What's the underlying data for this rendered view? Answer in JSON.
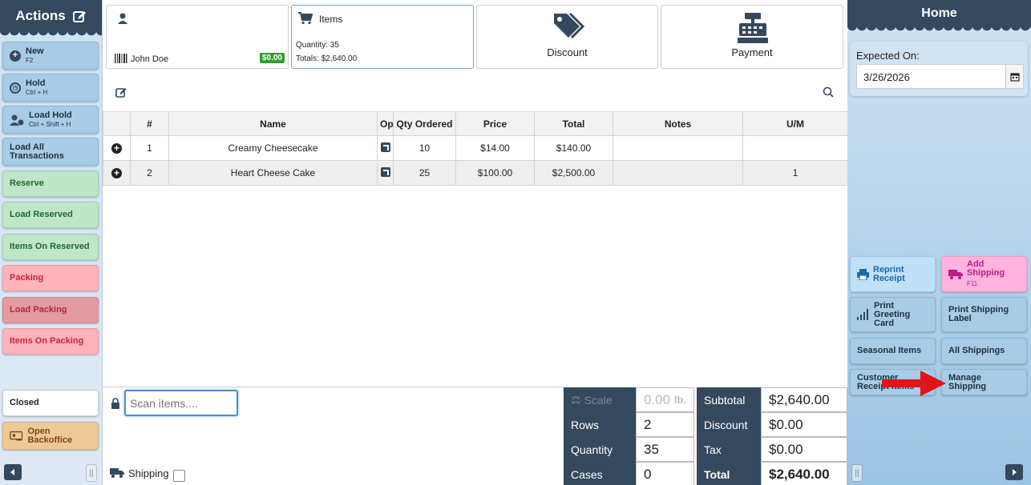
{
  "left": {
    "title": "Actions",
    "buttons": [
      {
        "label": "New",
        "sub": "F2"
      },
      {
        "label": "Hold",
        "sub": "Ctrl + H"
      },
      {
        "label": "Load Hold",
        "sub": "Ctrl + Shift + H"
      },
      {
        "label": "Load All Transactions"
      },
      {
        "label": "Reserve"
      },
      {
        "label": "Load Reserved"
      },
      {
        "label": "Items On Reserved"
      },
      {
        "label": "Packing"
      },
      {
        "label": "Load Packing"
      },
      {
        "label": "Items On Packing"
      },
      {
        "label": "Closed"
      },
      {
        "label": "Open Backoffice"
      }
    ]
  },
  "cards": {
    "customer": {
      "name": "John Doe",
      "balance": "$0.00"
    },
    "items": {
      "title": "Items",
      "quantity": "Quantity: 35",
      "totals": "Totals: $2,640.00"
    },
    "discount": {
      "label": "Discount"
    },
    "payment": {
      "label": "Payment"
    }
  },
  "table": {
    "headers": [
      "",
      "#",
      "Name",
      "Op",
      "Qty Ordered",
      "Price",
      "Total",
      "Notes",
      "U/M"
    ],
    "rows": [
      {
        "num": "1",
        "name": "Creamy Cheesecake",
        "qty": "10",
        "price": "$14.00",
        "total": "$140.00",
        "notes": "",
        "um": ""
      },
      {
        "num": "2",
        "name": "Heart Cheese Cake",
        "qty": "25",
        "price": "$100.00",
        "total": "$2,500.00",
        "notes": "",
        "um": "1"
      }
    ]
  },
  "scan": {
    "placeholder": "Scan items....",
    "shipping_label": "Shipping"
  },
  "summary": {
    "scale_label": "Scale",
    "scale_value": "0.00",
    "scale_unit": "lb.",
    "rows_label": "Rows",
    "rows_value": "2",
    "quantity_label": "Quantity",
    "quantity_value": "35",
    "cases_label": "Cases",
    "cases_value": "0",
    "subtotal_label": "Subtotal",
    "subtotal_value": "$2,640.00",
    "discount_label": "Discount",
    "discount_value": "$0.00",
    "tax_label": "Tax",
    "tax_value": "$0.00",
    "total_label": "Total",
    "total_value": "$2,640.00"
  },
  "right": {
    "title": "Home",
    "expected_label": "Expected On:",
    "expected_value": "3/26/2026",
    "buttons": {
      "reprint": "Reprint Receipt",
      "add_shipping": "Add Shipping",
      "add_shipping_sub": "F11",
      "greeting": "Print Greeting Card",
      "shipping_label": "Print Shipping Label",
      "seasonal": "Seasonal Items",
      "all_shippings": "All Shippings",
      "customer_receipt": "Customer Receipt Items",
      "manage_shipping": "Manage Shipping"
    }
  },
  "colors": {
    "dark": "#34495e",
    "arrow": "#e0141b",
    "badge": "#2e9e2e"
  }
}
